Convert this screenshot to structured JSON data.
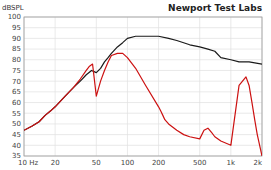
{
  "chart_data": {
    "type": "line",
    "title": "Newport Test Labs",
    "y_label": "dBSPL",
    "log": "x",
    "grid": true,
    "xlim": [
      10,
      2000
    ],
    "ylim": [
      35,
      100
    ],
    "xticks": [
      {
        "value": 10,
        "label": "10 Hz"
      },
      20,
      50,
      100,
      200,
      500,
      {
        "value": 1000,
        "label": "1k"
      },
      {
        "value": 2000,
        "label": "2k"
      }
    ],
    "yticks": [
      35,
      40,
      45,
      50,
      55,
      60,
      65,
      70,
      75,
      80,
      85,
      90,
      95,
      100
    ],
    "series": [
      {
        "color": "#1a1a1a",
        "x": [
          10,
          12,
          14,
          16,
          18,
          20,
          25,
          30,
          35,
          40,
          45,
          50,
          55,
          60,
          65,
          70,
          80,
          90,
          100,
          120,
          150,
          200,
          250,
          300,
          400,
          500,
          600,
          700,
          800,
          1000,
          1200,
          1500,
          2000
        ],
        "values": [
          47,
          49,
          51,
          54,
          56,
          58,
          63,
          67,
          70,
          73,
          75,
          74,
          76,
          79,
          81,
          83,
          86,
          88,
          90,
          91,
          91,
          91,
          90,
          89,
          87,
          86,
          85,
          84,
          81,
          80,
          79,
          79,
          78
        ]
      },
      {
        "color": "#cc1111",
        "x": [
          10,
          12,
          14,
          16,
          18,
          20,
          25,
          30,
          35,
          40,
          43,
          46,
          50,
          55,
          60,
          65,
          70,
          80,
          90,
          100,
          120,
          150,
          200,
          210,
          220,
          230,
          250,
          300,
          350,
          400,
          500,
          550,
          600,
          650,
          700,
          800,
          1000,
          1200,
          1400,
          1500,
          1600,
          1700,
          1800,
          2000
        ],
        "values": [
          47,
          49,
          51,
          54,
          56,
          58,
          63,
          67,
          71,
          75,
          77,
          78,
          63,
          70,
          75,
          79,
          82,
          83,
          83,
          81,
          76,
          68,
          58,
          56,
          54,
          52,
          50,
          47,
          45,
          44,
          43,
          47,
          48,
          46,
          44,
          42,
          40,
          68,
          72,
          68,
          60,
          52,
          45,
          35
        ]
      }
    ]
  }
}
